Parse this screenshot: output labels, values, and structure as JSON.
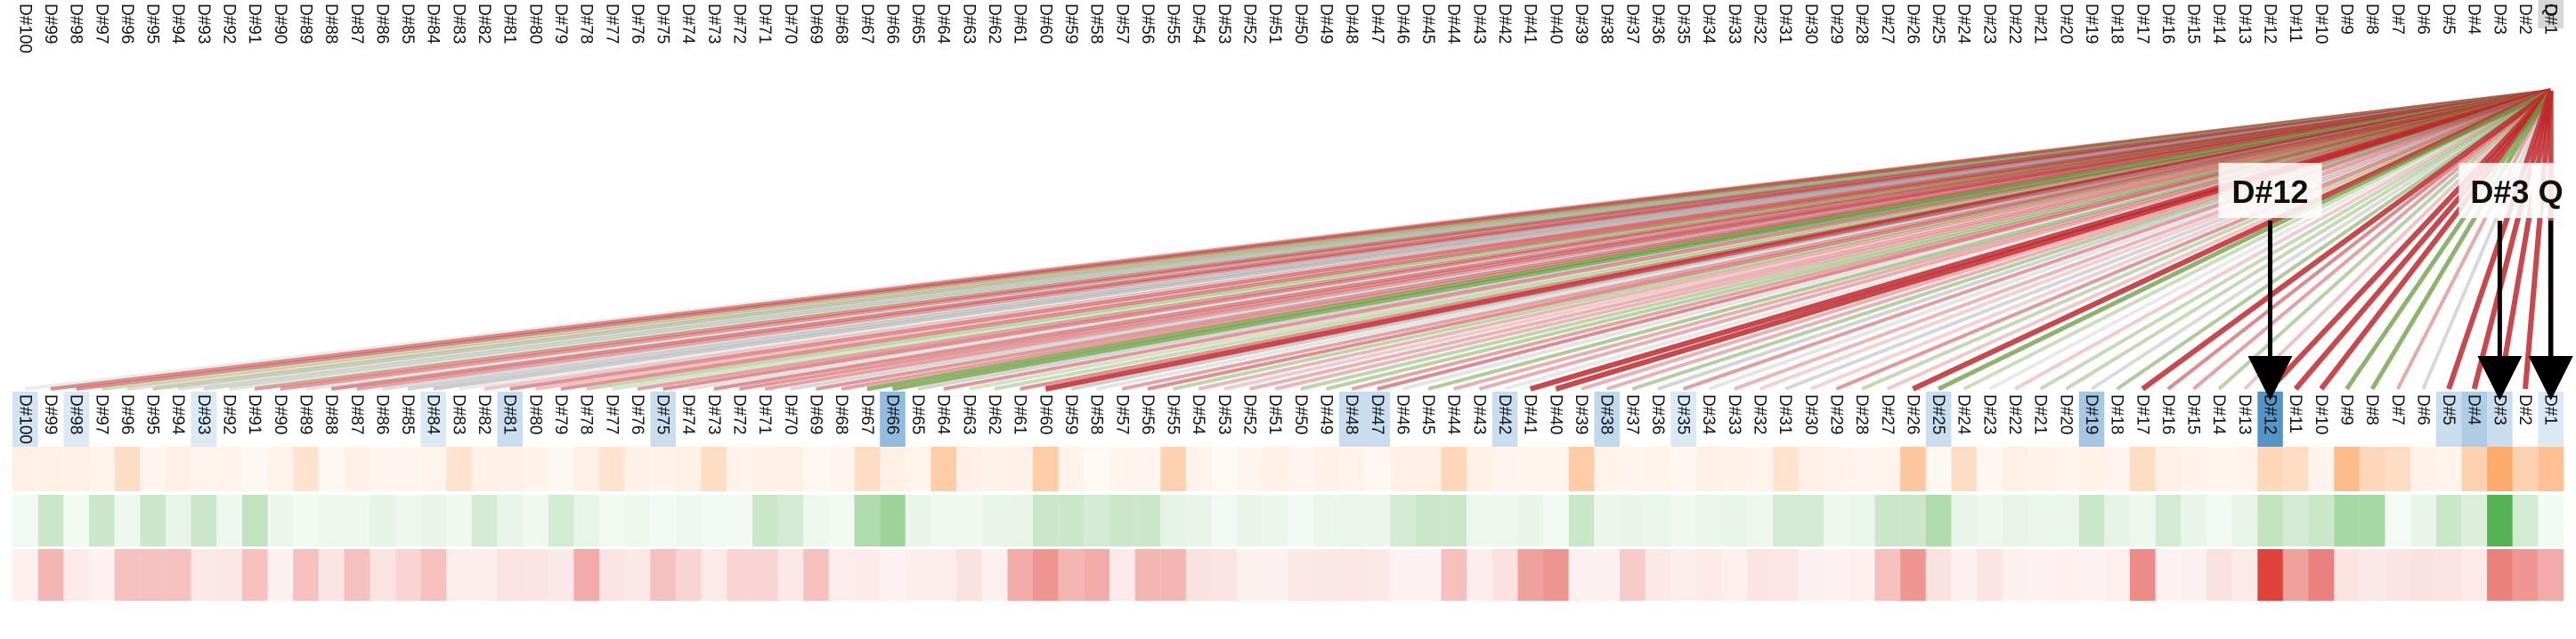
{
  "query_label": "Q",
  "doc_label_prefix": "D#",
  "doc_count": 100,
  "callouts": [
    {
      "label": "D#12",
      "target": 12
    },
    {
      "label": "D#3",
      "target": 3
    },
    {
      "label": "Q",
      "target": 0
    }
  ],
  "colors": {
    "query_top": "#d6d6d6",
    "query_bottom_header": "#4a8fc6",
    "query_bottom_row1": "#fdae6b",
    "blue_tint": "#4a8fc6",
    "orange_tint": "#fd8d3c",
    "green_tint": "#4daf4a",
    "red_tint": "#de2d26",
    "line_red": "#c0282b",
    "line_green": "#6a9a3c",
    "line_grey": "#9e9e9e"
  },
  "strengths": {
    "header_blue": {
      "1": 0.2,
      "3": 0.3,
      "4": 0.45,
      "5": 0.3,
      "12": 0.95,
      "19": 0.5,
      "25": 0.3,
      "35": 0.2,
      "38": 0.35,
      "42": 0.3,
      "47": 0.3,
      "48": 0.3,
      "66": 0.6,
      "75": 0.3,
      "81": 0.3,
      "84": 0.2,
      "93": 0.2,
      "98": 0.2,
      "100": 0.25
    },
    "row_orange": {
      "1": 0.55,
      "2": 0.4,
      "3": 0.75,
      "4": 0.4,
      "7": 0.3,
      "8": 0.35,
      "9": 0.6,
      "11": 0.3,
      "12": 0.35,
      "17": 0.3,
      "24": 0.3,
      "26": 0.5,
      "31": 0.25,
      "39": 0.45,
      "44": 0.35,
      "55": 0.4,
      "60": 0.45,
      "64": 0.45,
      "67": 0.3,
      "73": 0.3,
      "77": 0.25,
      "83": 0.25,
      "89": 0.25,
      "96": 0.3
    },
    "row_green": {
      "2": 0.25,
      "3": 0.95,
      "4": 0.2,
      "5": 0.3,
      "8": 0.5,
      "9": 0.5,
      "10": 0.3,
      "11": 0.25,
      "12": 0.35,
      "16": 0.25,
      "19": 0.3,
      "25": 0.45,
      "26": 0.3,
      "27": 0.3,
      "30": 0.25,
      "31": 0.25,
      "39": 0.3,
      "44": 0.3,
      "45": 0.3,
      "46": 0.25,
      "56": 0.3,
      "57": 0.3,
      "58": 0.25,
      "59": 0.3,
      "60": 0.3,
      "66": 0.55,
      "67": 0.45,
      "70": 0.25,
      "71": 0.3,
      "79": 0.25,
      "82": 0.25,
      "91": 0.35,
      "93": 0.3,
      "95": 0.3,
      "97": 0.3,
      "99": 0.3
    },
    "row_red": {
      "1": 0.4,
      "2": 0.5,
      "3": 0.6,
      "10": 0.6,
      "11": 0.45,
      "12": 0.9,
      "17": 0.55,
      "26": 0.5,
      "27": 0.3,
      "37": 0.25,
      "40": 0.5,
      "41": 0.45,
      "44": 0.3,
      "55": 0.35,
      "56": 0.35,
      "58": 0.4,
      "59": 0.35,
      "60": 0.5,
      "61": 0.4,
      "69": 0.3,
      "71": 0.2,
      "72": 0.2,
      "74": 0.2,
      "75": 0.3,
      "78": 0.4,
      "84": 0.3,
      "85": 0.2,
      "87": 0.3,
      "89": 0.3,
      "91": 0.3,
      "94": 0.3,
      "95": 0.3,
      "96": 0.3,
      "99": 0.35
    },
    "line_strong_red": [
      1,
      2,
      3,
      4,
      5,
      10,
      11,
      12,
      17,
      26,
      40,
      41,
      60
    ],
    "line_strong_green": [
      3,
      8,
      9,
      25,
      66,
      67
    ]
  }
}
